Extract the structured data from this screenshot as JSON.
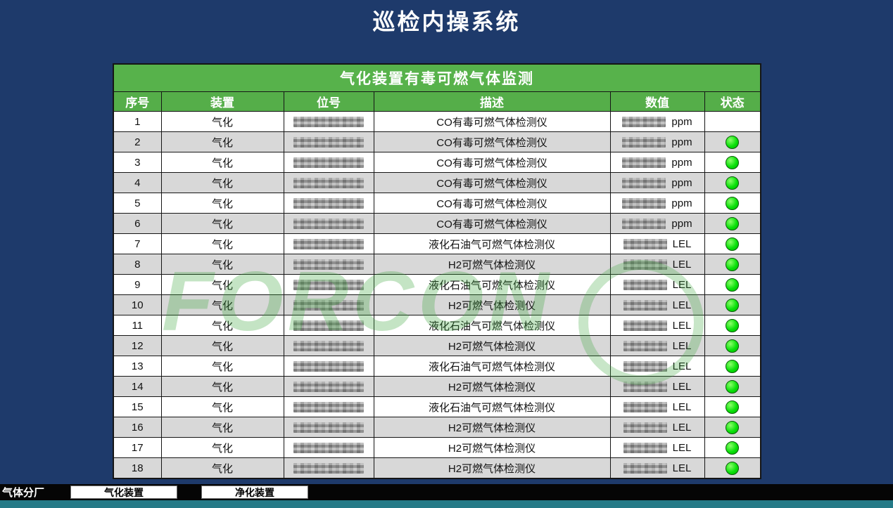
{
  "page": {
    "title": "巡检内操系统"
  },
  "colors": {
    "background": "#1e3a6b",
    "table_header_green": "#57b24b",
    "row_alt_gray": "#d8d8d8",
    "status_ok_green": "#0ae00a",
    "footer_black": "#050505",
    "bottom_strip_teal": "#257a87",
    "watermark_green": "#3aa53a"
  },
  "watermark": {
    "text": "FORCON"
  },
  "table": {
    "title": "气化装置有毒可燃气体监测",
    "columns": [
      "序号",
      "装置",
      "位号",
      "描述",
      "数值",
      "状态"
    ],
    "rows": [
      {
        "no": "1",
        "device": "气化",
        "tag_redacted": true,
        "desc": "CO有毒可燃气体检测仪",
        "value_redacted": true,
        "unit": "ppm",
        "status": "none"
      },
      {
        "no": "2",
        "device": "气化",
        "tag_redacted": true,
        "desc": "CO有毒可燃气体检测仪",
        "value_redacted": true,
        "unit": "ppm",
        "status": "ok"
      },
      {
        "no": "3",
        "device": "气化",
        "tag_redacted": true,
        "desc": "CO有毒可燃气体检测仪",
        "value_redacted": true,
        "unit": "ppm",
        "status": "ok"
      },
      {
        "no": "4",
        "device": "气化",
        "tag_redacted": true,
        "desc": "CO有毒可燃气体检测仪",
        "value_redacted": true,
        "unit": "ppm",
        "status": "ok"
      },
      {
        "no": "5",
        "device": "气化",
        "tag_redacted": true,
        "desc": "CO有毒可燃气体检测仪",
        "value_redacted": true,
        "unit": "ppm",
        "status": "ok"
      },
      {
        "no": "6",
        "device": "气化",
        "tag_redacted": true,
        "desc": "CO有毒可燃气体检测仪",
        "value_redacted": true,
        "unit": "ppm",
        "status": "ok"
      },
      {
        "no": "7",
        "device": "气化",
        "tag_redacted": true,
        "desc": "液化石油气可燃气体检测仪",
        "value_redacted": true,
        "unit": "LEL",
        "status": "ok"
      },
      {
        "no": "8",
        "device": "气化",
        "tag_redacted": true,
        "desc": "H2可燃气体检测仪",
        "value_redacted": true,
        "unit": "LEL",
        "status": "ok"
      },
      {
        "no": "9",
        "device": "气化",
        "tag_redacted": true,
        "desc": "液化石油气可燃气体检测仪",
        "value_redacted": true,
        "unit": "LEL",
        "status": "ok"
      },
      {
        "no": "10",
        "device": "气化",
        "tag_redacted": true,
        "desc": "H2可燃气体检测仪",
        "value_redacted": true,
        "unit": "LEL",
        "status": "ok"
      },
      {
        "no": "11",
        "device": "气化",
        "tag_redacted": true,
        "desc": "液化石油气可燃气体检测仪",
        "value_redacted": true,
        "unit": "LEL",
        "status": "ok"
      },
      {
        "no": "12",
        "device": "气化",
        "tag_redacted": true,
        "desc": "H2可燃气体检测仪",
        "value_redacted": true,
        "unit": "LEL",
        "status": "ok"
      },
      {
        "no": "13",
        "device": "气化",
        "tag_redacted": true,
        "desc": "液化石油气可燃气体检测仪",
        "value_redacted": true,
        "unit": "LEL",
        "status": "ok"
      },
      {
        "no": "14",
        "device": "气化",
        "tag_redacted": true,
        "desc": "H2可燃气体检测仪",
        "value_redacted": true,
        "unit": "LEL",
        "status": "ok"
      },
      {
        "no": "15",
        "device": "气化",
        "tag_redacted": true,
        "desc": "液化石油气可燃气体检测仪",
        "value_redacted": true,
        "unit": "LEL",
        "status": "ok"
      },
      {
        "no": "16",
        "device": "气化",
        "tag_redacted": true,
        "desc": "H2可燃气体检测仪",
        "value_redacted": true,
        "unit": "LEL",
        "status": "ok"
      },
      {
        "no": "17",
        "device": "气化",
        "tag_redacted": true,
        "desc": "H2可燃气体检测仪",
        "value_redacted": true,
        "unit": "LEL",
        "status": "ok"
      },
      {
        "no": "18",
        "device": "气化",
        "tag_redacted": true,
        "desc": "H2可燃气体检测仪",
        "value_redacted": true,
        "unit": "LEL",
        "status": "ok"
      }
    ]
  },
  "footer": {
    "label": "气体分厂",
    "buttons": [
      {
        "label": "气化装置"
      },
      {
        "label": "净化装置"
      }
    ]
  }
}
